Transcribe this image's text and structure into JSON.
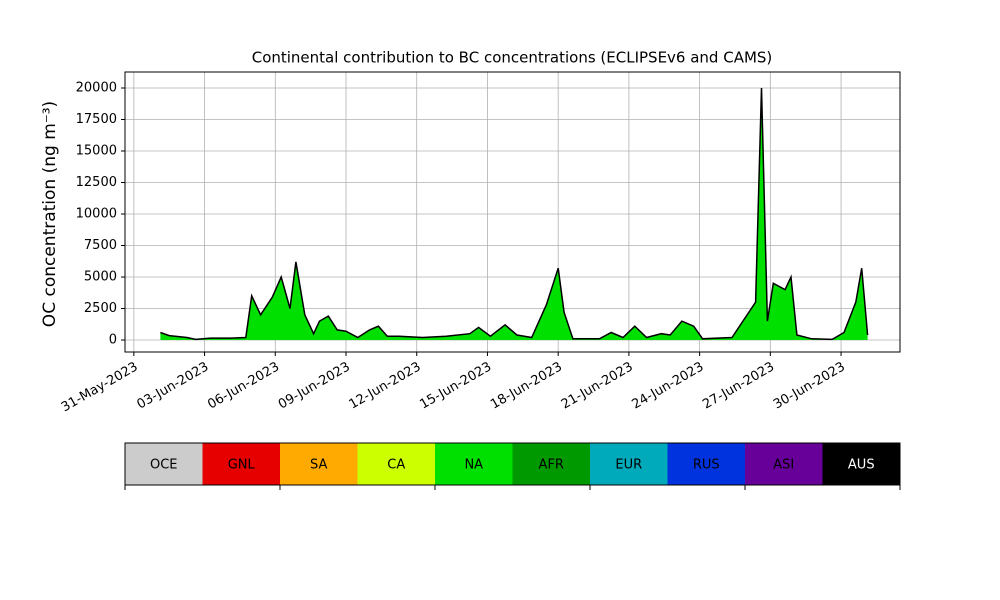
{
  "chart_data": {
    "type": "area",
    "title": "Continental contribution to BC concentrations (ECLIPSEv6 and CAMS)",
    "y_label": "OC concentration (ng m⁻³)",
    "x": [
      "2023-06-01T03:00",
      "2023-06-01T12:00",
      "2023-06-02T06:00",
      "2023-06-02T15:00",
      "2023-06-03T06:00",
      "2023-06-04T03:00",
      "2023-06-04T18:00",
      "2023-06-05T00:00",
      "2023-06-05T09:00",
      "2023-06-05T21:00",
      "2023-06-06T06:00",
      "2023-06-06T15:00",
      "2023-06-06T21:00",
      "2023-06-07T06:00",
      "2023-06-07T15:00",
      "2023-06-07T21:00",
      "2023-06-08T06:00",
      "2023-06-08T15:00",
      "2023-06-09T00:00",
      "2023-06-09T12:00",
      "2023-06-10T00:00",
      "2023-06-10T09:00",
      "2023-06-10T18:00",
      "2023-06-11T06:00",
      "2023-06-12T06:00",
      "2023-06-13T06:00",
      "2023-06-14T06:00",
      "2023-06-14T15:00",
      "2023-06-15T03:00",
      "2023-06-15T18:00",
      "2023-06-16T06:00",
      "2023-06-16T21:00",
      "2023-06-17T12:00",
      "2023-06-18T00:00",
      "2023-06-18T06:00",
      "2023-06-18T15:00",
      "2023-06-19T18:00",
      "2023-06-20T06:00",
      "2023-06-20T18:00",
      "2023-06-21T06:00",
      "2023-06-21T18:00",
      "2023-06-22T09:00",
      "2023-06-22T18:00",
      "2023-06-23T06:00",
      "2023-06-23T18:00",
      "2023-06-24T03:00",
      "2023-06-25T09:00",
      "2023-06-26T09:00",
      "2023-06-26T15:00",
      "2023-06-26T21:00",
      "2023-06-27T03:00",
      "2023-06-27T15:00",
      "2023-06-27T21:00",
      "2023-06-28T03:00",
      "2023-06-28T18:00",
      "2023-06-29T15:00",
      "2023-06-30T03:00",
      "2023-06-30T15:00",
      "2023-06-30T21:00",
      "2023-07-01T03:00"
    ],
    "values": [
      600,
      350,
      200,
      50,
      150,
      150,
      200,
      3500,
      2000,
      3400,
      5000,
      2500,
      6200,
      2000,
      500,
      1500,
      1900,
      800,
      700,
      200,
      800,
      1100,
      300,
      300,
      200,
      300,
      500,
      1000,
      300,
      1200,
      400,
      200,
      2800,
      5700,
      2200,
      100,
      100,
      600,
      200,
      1100,
      200,
      500,
      400,
      1500,
      1100,
      100,
      200,
      3000,
      20000,
      1500,
      4500,
      4000,
      5000,
      400,
      100,
      50,
      600,
      3000,
      5700,
      400
    ],
    "color": "#00e000",
    "edgecolor": "#000000",
    "xlim": [
      "2023-05-30T15:00",
      "2023-07-02T12:00"
    ],
    "xticks": [
      {
        "value": "2023-05-31T00:00",
        "label": "31-May-2023"
      },
      {
        "value": "2023-06-03T00:00",
        "label": "03-Jun-2023"
      },
      {
        "value": "2023-06-06T00:00",
        "label": "06-Jun-2023"
      },
      {
        "value": "2023-06-09T00:00",
        "label": "09-Jun-2023"
      },
      {
        "value": "2023-06-12T00:00",
        "label": "12-Jun-2023"
      },
      {
        "value": "2023-06-15T00:00",
        "label": "15-Jun-2023"
      },
      {
        "value": "2023-06-18T00:00",
        "label": "18-Jun-2023"
      },
      {
        "value": "2023-06-21T00:00",
        "label": "21-Jun-2023"
      },
      {
        "value": "2023-06-24T00:00",
        "label": "24-Jun-2023"
      },
      {
        "value": "2023-06-27T00:00",
        "label": "27-Jun-2023"
      },
      {
        "value": "2023-06-30T00:00",
        "label": "30-Jun-2023"
      }
    ],
    "ylim": [
      -950,
      21270
    ],
    "yticks": [
      0,
      2500,
      5000,
      7500,
      10000,
      12500,
      15000,
      17500,
      20000
    ],
    "grid": true,
    "colorbar": {
      "labels": [
        "OCE",
        "GNL",
        "SA",
        "CA",
        "NA",
        "AFR",
        "EUR",
        "RUS",
        "ASI",
        "AUS"
      ],
      "colors": [
        "#cccccc",
        "#e60000",
        "#ffaa00",
        "#ccff00",
        "#00e000",
        "#009900",
        "#00aabb",
        "#0033dd",
        "#660099",
        "#000000"
      ]
    }
  }
}
